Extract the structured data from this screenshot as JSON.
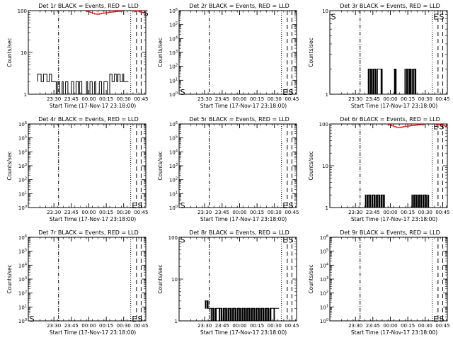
{
  "chart_data": [
    {
      "type": "line",
      "title": "Det 1r BLACK = Events, RED = LLD",
      "xlabel": "Start Time (17-Nov-17 23:18:00)",
      "ylabel": "Counts/sec",
      "yscale": "log",
      "ylim": [
        1,
        100
      ],
      "ytick_labels": [
        "1",
        "10",
        "100"
      ],
      "xlim_min": [
        -10,
        91
      ],
      "xtick_min": [
        12,
        27,
        42,
        57,
        72,
        87
      ],
      "xtick_labels": [
        "23:30",
        "23:45",
        "00:00",
        "00:15",
        "00:30",
        "00:45"
      ],
      "vline_dashdot_min": 16,
      "vline_dotted_min": 78,
      "vlines_dashed_min": [
        83,
        87
      ],
      "markers": [
        {
          "text": "S",
          "x_min": 89,
          "y": 88
        }
      ],
      "series": [
        {
          "color": "#000000",
          "x_min": [
            -2,
            -2,
            0,
            1,
            3,
            5,
            6,
            8,
            10,
            12,
            14,
            15,
            17,
            19,
            20,
            22,
            24,
            26,
            27,
            29,
            31,
            33,
            34,
            36,
            38,
            40,
            41,
            43,
            45,
            47,
            48,
            50,
            51,
            53,
            55,
            57,
            58,
            60,
            62,
            64,
            66,
            67,
            69,
            71,
            72,
            74,
            76
          ],
          "values": [
            2,
            3,
            3,
            2,
            3,
            3,
            2,
            3,
            2,
            2,
            1,
            2,
            1,
            2,
            1,
            2,
            1,
            1,
            2,
            1,
            2,
            1,
            2,
            1,
            1,
            2,
            1,
            2,
            1,
            2,
            1,
            1,
            2,
            1,
            2,
            2,
            1,
            3,
            2,
            3,
            2,
            3,
            2,
            3,
            2,
            2,
            2
          ]
        },
        {
          "color": "#ff0000",
          "x_min": [
            40,
            43,
            45,
            47,
            49,
            51,
            53,
            55,
            57,
            59,
            61,
            63,
            65,
            67,
            69,
            71
          ],
          "values": [
            95,
            90,
            86,
            83,
            82,
            84,
            86,
            88,
            89,
            91,
            92,
            94,
            95,
            96,
            97,
            98
          ]
        },
        {
          "color": "#ff0000",
          "x_min": [
            81,
            82,
            83,
            84,
            85,
            86,
            87,
            88,
            89,
            90,
            91
          ],
          "values": [
            94,
            97,
            100,
            98,
            96,
            93,
            92,
            90,
            88,
            87,
            86
          ]
        }
      ]
    },
    {
      "type": "line",
      "title": "Det 2r BLACK = Events, RED = LLD",
      "xlabel": "Start Time (17-Nov-17 23:18:00)",
      "ylabel": "Counts/sec",
      "yscale": "log",
      "ylim": [
        1,
        1000000
      ],
      "ytick_labels": [
        "10^0",
        "10^1",
        "10^2",
        "10^3",
        "10^4",
        "10^5",
        "10^6"
      ],
      "xlim_min": [
        -10,
        91
      ],
      "xtick_min": [
        12,
        27,
        42,
        57,
        72,
        87
      ],
      "xtick_labels": [
        "23:30",
        "23:45",
        "00:00",
        "00:15",
        "00:30",
        "00:45"
      ],
      "vline_dashdot_min": 16,
      "vline_dotted_min": 78,
      "vlines_dashed_min": [
        83,
        87
      ],
      "markers": [
        {
          "text": "S",
          "x_min": -9,
          "y": 1.4
        },
        {
          "text": "E",
          "x_min": 79,
          "y": 1.4
        },
        {
          "text": "S",
          "x_min": 84,
          "y": 1.4
        }
      ],
      "series": []
    },
    {
      "type": "line",
      "title": "Det 3r BLACK = Events, RED = LLD",
      "xlabel": "Start Time (17-Nov-17 23:18:00)",
      "ylabel": "Counts/sec",
      "yscale": "log",
      "ylim": [
        1,
        10
      ],
      "ytick_labels": [
        "1",
        "10"
      ],
      "xlim_min": [
        -10,
        91
      ],
      "xtick_min": [
        12,
        27,
        42,
        57,
        72,
        87
      ],
      "xtick_labels": [
        "23:30",
        "23:45",
        "00:00",
        "00:15",
        "00:30",
        "00:45"
      ],
      "vline_dashdot_min": 16,
      "vline_dotted_min": 78,
      "vlines_dashed_min": [
        83,
        87
      ],
      "markers": [
        {
          "text": "S",
          "x_min": -9,
          "y": 8.5
        },
        {
          "text": "E",
          "x_min": 79,
          "y": 8.5
        },
        {
          "text": "S",
          "x_min": 84,
          "y": 8.5
        }
      ],
      "series": [
        {
          "color": "#000000",
          "x_min": [
            22,
            23,
            23.5,
            24,
            25,
            25.5,
            26,
            27,
            27.5,
            28,
            29,
            29.5,
            30,
            31,
            34,
            34.5,
            35,
            45,
            45.5,
            46,
            46.5,
            47,
            54,
            54.5,
            55,
            56,
            56.5,
            57,
            58,
            58.5,
            59,
            59.5,
            60,
            61,
            61.5,
            62,
            63,
            63.5,
            64
          ],
          "values": [
            1,
            2,
            1,
            2,
            1,
            2,
            1,
            2,
            1,
            2,
            1,
            2,
            1,
            2,
            1,
            2,
            1,
            1,
            2,
            1,
            2,
            1,
            1,
            2,
            1,
            2,
            1,
            2,
            1,
            2,
            1,
            2,
            1,
            2,
            1,
            2,
            1,
            2,
            1
          ]
        }
      ]
    },
    {
      "type": "line",
      "title": "Det 4r BLACK = Events, RED = LLD",
      "xlabel": "Start Time (17-Nov-17 23:18:00)",
      "ylabel": "Counts/sec",
      "yscale": "log",
      "ylim": [
        1,
        1000000
      ],
      "ytick_labels": [
        "10^0",
        "10^1",
        "10^2",
        "10^3",
        "10^4",
        "10^5",
        "10^6"
      ],
      "xlim_min": [
        -10,
        91
      ],
      "xtick_min": [
        12,
        27,
        42,
        57,
        72,
        87
      ],
      "xtick_labels": [
        "23:30",
        "23:45",
        "00:00",
        "00:15",
        "00:30",
        "00:45"
      ],
      "vline_dashdot_min": 16,
      "vline_dotted_min": 78,
      "vlines_dashed_min": [
        83,
        87
      ],
      "markers": [
        {
          "text": "E",
          "x_min": 79,
          "y": 1.4
        },
        {
          "text": "S",
          "x_min": 84,
          "y": 1.4
        }
      ],
      "series": []
    },
    {
      "type": "line",
      "title": "Det 5r BLACK = Events, RED = LLD",
      "xlabel": "Start Time (17-Nov-17 23:18:00)",
      "ylabel": "Counts/sec",
      "yscale": "log",
      "ylim": [
        1,
        1000000
      ],
      "ytick_labels": [
        "10^0",
        "10^1",
        "10^2",
        "10^3",
        "10^4",
        "10^5",
        "10^6"
      ],
      "xlim_min": [
        -10,
        91
      ],
      "xtick_min": [
        12,
        27,
        42,
        57,
        72,
        87
      ],
      "xtick_labels": [
        "23:30",
        "23:45",
        "00:00",
        "00:15",
        "00:30",
        "00:45"
      ],
      "vline_dashdot_min": 16,
      "vline_dotted_min": 78,
      "vlines_dashed_min": [
        83,
        87
      ],
      "markers": [
        {
          "text": "S",
          "x_min": -9,
          "y": 1.4
        },
        {
          "text": "E",
          "x_min": 79,
          "y": 1.4
        },
        {
          "text": "S",
          "x_min": 84,
          "y": 1.4
        }
      ],
      "series": []
    },
    {
      "type": "line",
      "title": "Det 6r BLACK = Events, RED = LLD",
      "xlabel": "Start Time (17-Nov-17 23:18:00)",
      "ylabel": "Counts/sec",
      "yscale": "log",
      "ylim": [
        1,
        100
      ],
      "ytick_labels": [
        "1",
        "10",
        "100"
      ],
      "xlim_min": [
        -10,
        91
      ],
      "xtick_min": [
        12,
        27,
        42,
        57,
        72,
        87
      ],
      "xtick_labels": [
        "23:30",
        "23:45",
        "00:00",
        "00:15",
        "00:30",
        "00:45"
      ],
      "vline_dashdot_min": 16,
      "vline_dotted_min": 78,
      "vlines_dashed_min": [
        83,
        87
      ],
      "markers": [
        {
          "text": "E",
          "x_min": 79,
          "y": 88
        },
        {
          "text": "S",
          "x_min": 84,
          "y": 88
        }
      ],
      "series": [
        {
          "color": "#000000",
          "x_min": [
            20,
            20.5,
            21,
            22,
            22.5,
            23,
            24,
            24.5,
            25,
            26,
            26.5,
            27,
            28,
            28.5,
            29,
            30,
            30.5,
            31,
            32,
            32.5,
            33,
            34,
            34.5,
            35,
            36,
            36.5,
            37,
            60,
            60.5,
            61,
            62,
            62.5,
            63,
            64,
            64.5,
            65,
            66,
            66.5,
            67,
            68,
            68.5,
            69,
            70,
            70.5,
            71,
            72,
            72.5,
            73,
            74,
            74.5,
            75
          ],
          "values": [
            1,
            2,
            1,
            2,
            1,
            2,
            1,
            2,
            1,
            2,
            1,
            2,
            1,
            2,
            1,
            2,
            1,
            2,
            1,
            2,
            1,
            2,
            1,
            2,
            1,
            2,
            1,
            1,
            2,
            1,
            2,
            1,
            2,
            1,
            2,
            1,
            2,
            1,
            2,
            1,
            2,
            1,
            2,
            1,
            2,
            1,
            2,
            1,
            2,
            1,
            2
          ]
        },
        {
          "color": "#ff0000",
          "x_min": [
            40,
            43,
            45,
            47,
            49,
            51,
            53,
            55,
            57,
            59,
            61,
            63,
            65,
            67,
            69,
            71
          ],
          "values": [
            95,
            90,
            86,
            83,
            82,
            84,
            86,
            88,
            89,
            91,
            92,
            94,
            95,
            96,
            97,
            98
          ]
        },
        {
          "color": "#ff0000",
          "x_min": [
            81,
            82,
            83,
            84,
            85,
            86,
            87,
            88,
            89,
            90,
            91
          ],
          "values": [
            94,
            97,
            100,
            98,
            96,
            93,
            92,
            90,
            88,
            87,
            86
          ]
        }
      ]
    },
    {
      "type": "line",
      "title": "Det 7r BLACK = Events, RED = LLD",
      "xlabel": "Start Time (17-Nov-17 23:18:00)",
      "ylabel": "Counts/sec",
      "yscale": "log",
      "ylim": [
        1,
        1000000
      ],
      "ytick_labels": [
        "10^0",
        "10^1",
        "10^2",
        "10^3",
        "10^4",
        "10^5",
        "10^6"
      ],
      "xlim_min": [
        -10,
        91
      ],
      "xtick_min": [
        12,
        27,
        42,
        57,
        72,
        87
      ],
      "xtick_labels": [
        "23:30",
        "23:45",
        "00:00",
        "00:15",
        "00:30",
        "00:45"
      ],
      "vline_dashdot_min": 16,
      "vline_dotted_min": 78,
      "vlines_dashed_min": [
        83,
        87
      ],
      "markers": [
        {
          "text": "S",
          "x_min": -9,
          "y": 1.4
        },
        {
          "text": "E",
          "x_min": 79,
          "y": 1.4
        },
        {
          "text": "S",
          "x_min": 84,
          "y": 1.4
        }
      ],
      "series": []
    },
    {
      "type": "line",
      "title": "Det 8r BLACK = Events, RED = LLD",
      "xlabel": "Start Time (17-Nov-17 23:18:00)",
      "ylabel": "Counts/sec",
      "yscale": "log",
      "ylim": [
        1,
        100
      ],
      "ytick_labels": [
        "1",
        "10",
        "100"
      ],
      "xlim_min": [
        -10,
        91
      ],
      "xtick_min": [
        12,
        27,
        42,
        57,
        72,
        87
      ],
      "xtick_labels": [
        "23:30",
        "23:45",
        "00:00",
        "00:15",
        "00:30",
        "00:45"
      ],
      "vline_dashdot_min": 16,
      "vline_dotted_min": 78,
      "vlines_dashed_min": [
        83,
        87
      ],
      "markers": [
        {
          "text": "S",
          "x_min": -9,
          "y": 88
        },
        {
          "text": "E",
          "x_min": 79,
          "y": 88
        },
        {
          "text": "S",
          "x_min": 84,
          "y": 88
        }
      ],
      "series": [
        {
          "color": "#000000",
          "x_min": [
            12,
            12.5,
            13,
            14,
            14.5,
            15,
            16,
            17,
            17.5,
            18,
            19,
            19.5,
            20,
            21,
            21.5,
            22,
            24,
            24.5,
            25,
            26,
            26.5,
            27,
            28,
            28.5,
            29,
            30,
            30.5,
            31,
            32,
            32.5,
            33,
            34,
            34.5,
            35,
            36,
            36.5,
            37,
            38,
            38.5,
            39,
            40,
            40.5,
            41,
            42,
            42.5,
            43,
            44,
            44.5,
            45,
            46,
            46.5,
            47,
            48,
            48.5,
            49,
            50,
            50.5,
            51,
            52,
            52.5,
            53,
            54,
            54.5,
            55,
            56,
            56.5,
            57,
            58,
            58.5,
            59,
            60,
            60.5,
            61,
            62,
            62.5,
            63,
            64,
            64.5,
            65,
            66,
            66.5,
            67,
            68,
            68.5,
            69,
            70,
            71,
            71.5,
            72,
            73,
            74,
            75,
            76
          ],
          "values": [
            3,
            2,
            3,
            2,
            3,
            2,
            2,
            2,
            1,
            2,
            1,
            2,
            1,
            2,
            1,
            2,
            2,
            1,
            2,
            1,
            2,
            1,
            2,
            1,
            2,
            1,
            2,
            1,
            2,
            1,
            2,
            1,
            2,
            1,
            2,
            1,
            2,
            1,
            2,
            1,
            2,
            1,
            2,
            1,
            2,
            1,
            2,
            1,
            2,
            1,
            2,
            1,
            2,
            1,
            2,
            1,
            2,
            1,
            2,
            1,
            2,
            1,
            2,
            1,
            2,
            1,
            2,
            1,
            2,
            1,
            2,
            1,
            2,
            1,
            2,
            1,
            2,
            1,
            2,
            1,
            2,
            1,
            2,
            1,
            2,
            2,
            2,
            1,
            2,
            2,
            2,
            2,
            2
          ]
        }
      ]
    },
    {
      "type": "line",
      "title": "Det 9r BLACK = Events, RED = LLD",
      "xlabel": "Start Time (17-Nov-17 23:18:00)",
      "ylabel": "Counts/sec",
      "yscale": "log",
      "ylim": [
        1,
        1000000
      ],
      "ytick_labels": [
        "10^0",
        "10^1",
        "10^2",
        "10^3",
        "10^4",
        "10^5",
        "10^6"
      ],
      "xlim_min": [
        -10,
        91
      ],
      "xtick_min": [
        12,
        27,
        42,
        57,
        72,
        87
      ],
      "xtick_labels": [
        "23:30",
        "23:45",
        "00:00",
        "00:15",
        "00:30",
        "00:45"
      ],
      "vline_dashdot_min": 16,
      "vline_dotted_min": 78,
      "vlines_dashed_min": [
        83,
        87
      ],
      "markers": [
        {
          "text": "E",
          "x_min": 79,
          "y": 1.4
        },
        {
          "text": "S",
          "x_min": 84,
          "y": 1.4
        }
      ],
      "series": []
    }
  ]
}
